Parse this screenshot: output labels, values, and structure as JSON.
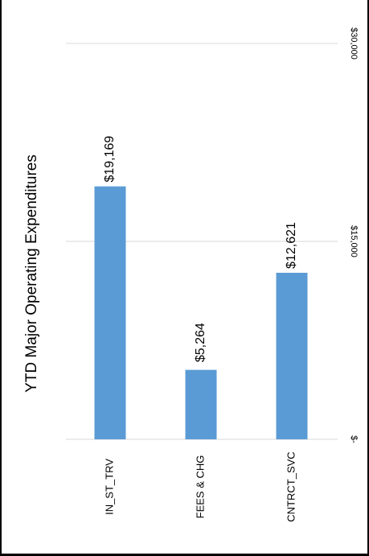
{
  "chart_data": {
    "type": "bar",
    "title": "YTD Major Operating Expenditures",
    "categories": [
      "IN_ST_TRV",
      "FEES & CHG",
      "CNTRCT_SVC"
    ],
    "values": [
      19169,
      5264,
      12621
    ],
    "value_labels": [
      "$19,169",
      "$5,264",
      "$12,621"
    ],
    "ylim": [
      0,
      30000
    ],
    "yticks": [
      {
        "value": 0,
        "label": "$-"
      },
      {
        "value": 15000,
        "label": "$15,000"
      },
      {
        "value": 30000,
        "label": "$30,000"
      }
    ],
    "grid": true,
    "legend": "none",
    "bar_color": "#5B9BD5",
    "grid_color": "#D9D9D9"
  }
}
